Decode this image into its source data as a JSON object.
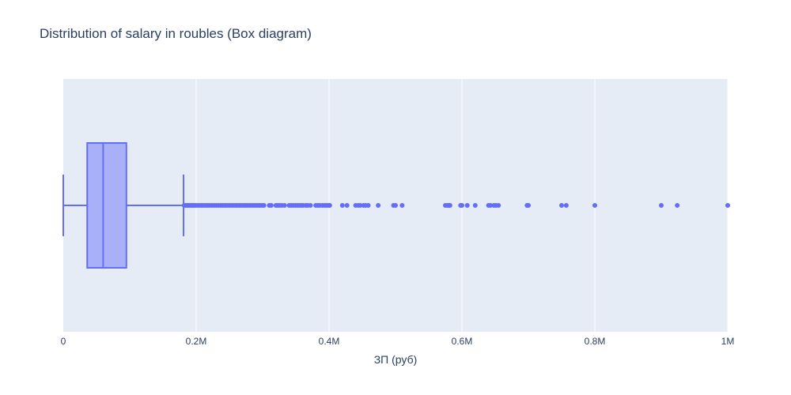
{
  "chart_data": {
    "type": "box",
    "title": "Distribution of salary in roubles (Box diagram)",
    "xlabel": "ЗП (руб)",
    "ylabel": "",
    "xlim": [
      0,
      1000000
    ],
    "xticks": [
      {
        "value": 0,
        "label": "0"
      },
      {
        "value": 200000,
        "label": "0.2M"
      },
      {
        "value": 400000,
        "label": "0.4M"
      },
      {
        "value": 600000,
        "label": "0.6M"
      },
      {
        "value": 800000,
        "label": "0.8M"
      },
      {
        "value": 1000000,
        "label": "1M"
      }
    ],
    "grid": true,
    "orientation": "horizontal",
    "box": {
      "lower_fence": 0,
      "q1": 36000,
      "median": 60000,
      "q3": 95000,
      "upper_fence": 181000
    },
    "outliers": [
      182000,
      184000,
      186000,
      188000,
      190000,
      192000,
      194000,
      196000,
      198000,
      200000,
      203000,
      206000,
      209000,
      212000,
      215000,
      218000,
      221000,
      224000,
      227000,
      230000,
      233000,
      236000,
      239000,
      242000,
      245000,
      248000,
      251000,
      254000,
      257000,
      260000,
      263000,
      266000,
      269000,
      272000,
      275000,
      278000,
      281000,
      284000,
      287000,
      290000,
      293000,
      296000,
      299000,
      302000,
      310000,
      313000,
      320000,
      323000,
      326000,
      329000,
      333000,
      340000,
      343000,
      346000,
      349000,
      352000,
      355000,
      358000,
      361000,
      365000,
      368000,
      372000,
      380000,
      383000,
      386000,
      390000,
      393000,
      396000,
      399000,
      401000,
      420000,
      427000,
      440000,
      444000,
      447000,
      452000,
      455000,
      459000,
      474000,
      497000,
      500000,
      510000,
      575000,
      578000,
      580000,
      582000,
      598000,
      600000,
      608000,
      620000,
      640000,
      643000,
      648000,
      651000,
      655000,
      698000,
      700000,
      750000,
      757000,
      800000,
      900000,
      924000,
      1000000
    ],
    "colors": {
      "box_line": "#636efa",
      "box_fill": "#a8b1f7",
      "plot_bg": "#e5ecf6",
      "grid": "#ffffff",
      "text": "#2a3f5f"
    }
  }
}
